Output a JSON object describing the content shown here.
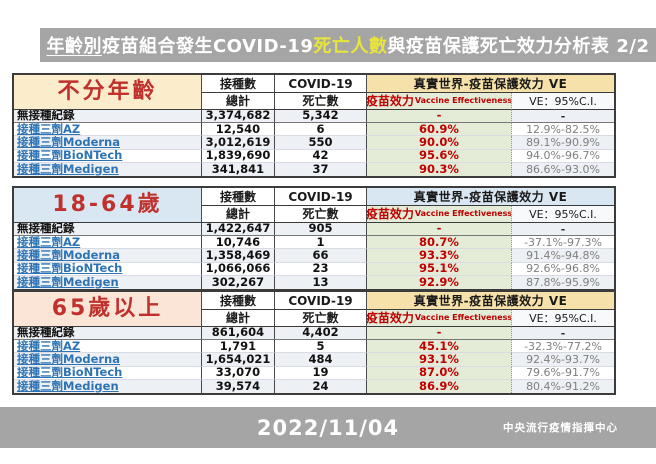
{
  "title": {
    "part_underlined": "年齡別",
    "part_plain": "疫苗組合發生COVID-19",
    "part_highlight": "死亡人數",
    "part_rest": "與疫苗保護死亡效力分析表",
    "page": "2/2"
  },
  "colors": {
    "bar_gray": "#a6a5a5",
    "highlight_yellow": "#e8e53a",
    "accent_red": "#c00000",
    "label_blue": "#2e74b5",
    "green_col": "#e4ecd8",
    "ci_gray": "#7f7f7f"
  },
  "headers": {
    "col_vaccinated_line1": "接種數",
    "col_vaccinated_line2": "總計",
    "col_covid_line1": "COVID-19",
    "col_covid_line2": "死亡數",
    "col_ve_group": "真實世界-疫苗保護效力 VE",
    "col_ve_sub_zh": "疫苗效力",
    "col_ve_sub_en": "Vaccine Effectiveness",
    "col_ci": "VE：95%C.I."
  },
  "tables": [
    {
      "name": "不分年齡",
      "accent": "#fbeccb",
      "ve_header_bg": "#f5e1a9",
      "rows": [
        {
          "label": "無接種紀錄",
          "total": "3,374,682",
          "deaths": "5,342",
          "ve": "-",
          "ci": "-"
        },
        {
          "label": "接種三劑AZ",
          "total": "12,540",
          "deaths": "6",
          "ve": "60.9%",
          "ci": "12.9%-82.5%"
        },
        {
          "label": "接種三劑Moderna",
          "total": "3,012,619",
          "deaths": "550",
          "ve": "90.0%",
          "ci": "89.1%-90.9%"
        },
        {
          "label": "接種三劑BioNTech",
          "total": "1,839,690",
          "deaths": "42",
          "ve": "95.6%",
          "ci": "94.0%-96.7%"
        },
        {
          "label": "接種三劑Medigen",
          "total": "341,841",
          "deaths": "37",
          "ve": "90.3%",
          "ci": "86.6%-93.0%"
        }
      ]
    },
    {
      "name": "18-64歲",
      "accent": "#d9e7f3",
      "ve_header_bg": "#d9e7f3",
      "rows": [
        {
          "label": "無接種紀錄",
          "total": "1,422,647",
          "deaths": "905",
          "ve": "-",
          "ci": "-"
        },
        {
          "label": "接種三劑AZ",
          "total": "10,746",
          "deaths": "1",
          "ve": "80.7%",
          "ci": "-37.1%-97.3%"
        },
        {
          "label": "接種三劑Moderna",
          "total": "1,358,469",
          "deaths": "66",
          "ve": "93.3%",
          "ci": "91.4%-94.8%"
        },
        {
          "label": "接種三劑BioNTech",
          "total": "1,066,066",
          "deaths": "23",
          "ve": "95.1%",
          "ci": "92.6%-96.8%"
        },
        {
          "label": "接種三劑Medigen",
          "total": "302,267",
          "deaths": "13",
          "ve": "92.9%",
          "ci": "87.8%-95.9%"
        }
      ]
    },
    {
      "name": "65歲以上",
      "accent": "#fbe5d6",
      "ve_header_bg": "#f5e1a9",
      "rows": [
        {
          "label": "無接種紀錄",
          "total": "861,604",
          "deaths": "4,402",
          "ve": "-",
          "ci": "-"
        },
        {
          "label": "接種三劑AZ",
          "total": "1,791",
          "deaths": "5",
          "ve": "45.1%",
          "ci": "-32.3%-77.2%"
        },
        {
          "label": "接種三劑Moderna",
          "total": "1,654,021",
          "deaths": "484",
          "ve": "93.1%",
          "ci": "92.4%-93.7%"
        },
        {
          "label": "接種三劑BioNTech",
          "total": "33,070",
          "deaths": "19",
          "ve": "87.0%",
          "ci": "79.6%-91.7%"
        },
        {
          "label": "接種三劑Medigen",
          "total": "39,574",
          "deaths": "24",
          "ve": "86.9%",
          "ci": "80.4%-91.2%"
        }
      ]
    }
  ],
  "footer": {
    "date": "2022/11/04",
    "agency": "中央流行疫情指揮中心"
  }
}
